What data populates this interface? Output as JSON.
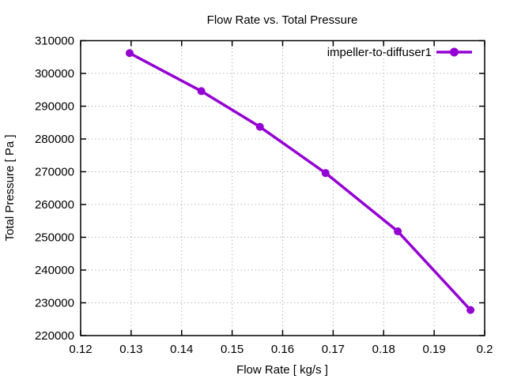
{
  "chart_data": {
    "type": "line",
    "title": "Flow Rate vs. Total Pressure",
    "xlabel": "Flow Rate [ kg/s ]",
    "ylabel": "Total Pressure [ Pa ]",
    "xlim": [
      0.12,
      0.2
    ],
    "ylim": [
      220000,
      310000
    ],
    "xticks": [
      0.12,
      0.13,
      0.14,
      0.15,
      0.16,
      0.17,
      0.18,
      0.19,
      0.2
    ],
    "xtick_labels": [
      "0.12",
      "0.13",
      "0.14",
      "0.15",
      "0.16",
      "0.17",
      "0.18",
      "0.19",
      "0.2"
    ],
    "yticks": [
      220000,
      230000,
      240000,
      250000,
      260000,
      270000,
      280000,
      290000,
      300000,
      310000
    ],
    "ytick_labels": [
      "220000",
      "230000",
      "240000",
      "250000",
      "260000",
      "270000",
      "280000",
      "290000",
      "300000",
      "310000"
    ],
    "grid": true,
    "legend": {
      "position": "top-right-inside",
      "entries": [
        "impeller-to-diffuser1"
      ]
    },
    "series": [
      {
        "name": "impeller-to-diffuser1",
        "color": "#9400d3",
        "marker": "circle",
        "line_width": 3.5,
        "marker_radius": 5,
        "x": [
          0.1297,
          0.1439,
          0.1555,
          0.1685,
          0.1828,
          0.1972
        ],
        "y": [
          306200,
          294600,
          283700,
          269600,
          251800,
          227800
        ]
      }
    ],
    "colors": {
      "grid": "#b8b8b8",
      "axis": "#000000",
      "text": "#000000",
      "background": "#ffffff"
    }
  }
}
